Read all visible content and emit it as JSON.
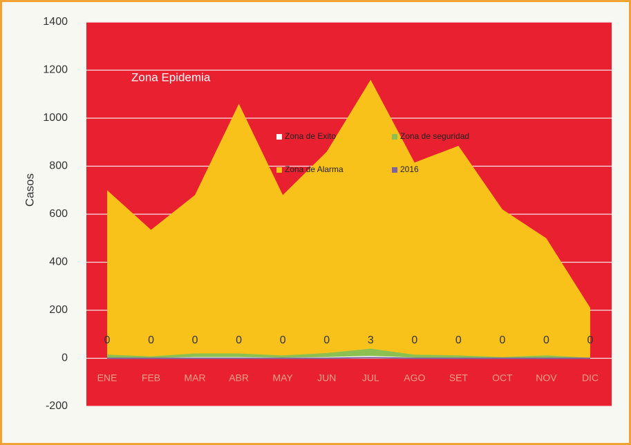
{
  "chart_data": {
    "type": "area",
    "annotation": "Zona Epidemia",
    "y_label": "Casos",
    "categories": [
      "ENE",
      "FEB",
      "MAR",
      "ABR",
      "MAY",
      "JUN",
      "JUL",
      "AGO",
      "SET",
      "OCT",
      "NOV",
      "DIC"
    ],
    "series": [
      {
        "name": "Zona de Alarma",
        "color": "#f9c21b",
        "values": [
          700,
          535,
          680,
          1060,
          680,
          860,
          1160,
          815,
          885,
          620,
          500,
          210
        ]
      },
      {
        "name": "Zona de seguridad",
        "color": "#8cc152",
        "values": [
          15,
          8,
          20,
          20,
          12,
          22,
          40,
          15,
          12,
          5,
          12,
          2
        ]
      },
      {
        "name": "Zona de Exito",
        "color": "#ffffff",
        "values": [
          3,
          2,
          5,
          5,
          3,
          5,
          10,
          3,
          3,
          1,
          3,
          0
        ]
      },
      {
        "name": "2016",
        "color": "#8064a2",
        "line": true,
        "values": [
          0,
          0,
          0,
          0,
          0,
          0,
          3,
          0,
          0,
          0,
          0,
          0
        ]
      }
    ],
    "legend_order": [
      2,
      1,
      0,
      3
    ],
    "plot_background": "#e8202f",
    "ylim": [
      -200,
      1400
    ],
    "yticks": [
      -200,
      0,
      200,
      400,
      600,
      800,
      1000,
      1200,
      1400
    ],
    "grid": true
  }
}
